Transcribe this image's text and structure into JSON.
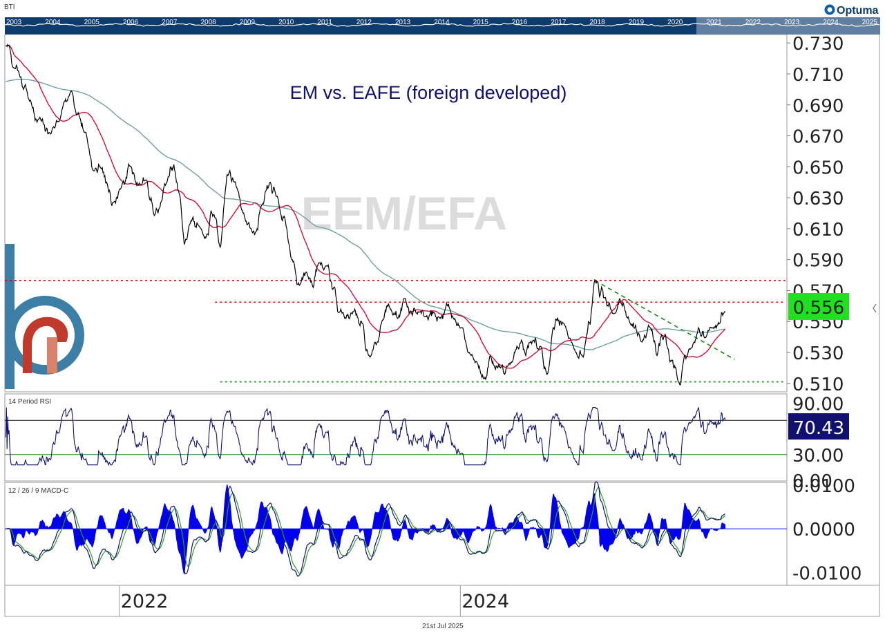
{
  "header": {
    "ticker": "BTI",
    "brand": "Optuma",
    "navigator_years": [
      "2003",
      "2004",
      "2005",
      "2006",
      "2007",
      "2008",
      "2009",
      "2010",
      "2011",
      "2012",
      "2013",
      "2014",
      "2015",
      "2016",
      "2017",
      "2018",
      "2019",
      "2020",
      "2021",
      "2022",
      "2023",
      "2024",
      "2025"
    ]
  },
  "footer": {
    "date": "21st Jul 2025"
  },
  "colors": {
    "price": "#000000",
    "ma_short": "#d0103a",
    "ma_long": "#6fa0a0",
    "resistance": "#e00000",
    "support": "#138a13",
    "trendline": "#138a13",
    "rsi": "#10106e",
    "macd_hist": "#0000ee",
    "macd_line": "#10106e",
    "macd_signal": "#2e9a2e",
    "price_badge": "#20e020",
    "rsi_badge": "#10106e",
    "navigator": "#0d3b6e",
    "watermark": "#dcdcdc",
    "title_color": "#10106e"
  },
  "chart_data": [
    {
      "type": "line",
      "panel": "price",
      "title": "EM vs. EAFE (foreign developed)",
      "watermark": "EEM/EFA",
      "x_range": [
        "2021-05-01",
        "2025-11-30"
      ],
      "ylim": [
        0.505,
        0.735
      ],
      "y_ticks": [
        "0.730",
        "0.710",
        "0.690",
        "0.670",
        "0.650",
        "0.630",
        "0.610",
        "0.590",
        "0.570",
        "0.550",
        "0.530",
        "0.510"
      ],
      "last_value": "0.556",
      "x_ticks": [
        "2022",
        "2024"
      ],
      "anchors": [
        [
          "2021-05-03",
          0.728
        ],
        [
          "2021-05-20",
          0.714
        ],
        [
          "2021-06-10",
          0.7
        ],
        [
          "2021-06-25",
          0.693
        ],
        [
          "2021-07-15",
          0.682
        ],
        [
          "2021-08-05",
          0.672
        ],
        [
          "2021-08-20",
          0.68
        ],
        [
          "2021-09-05",
          0.692
        ],
        [
          "2021-09-20",
          0.699
        ],
        [
          "2021-10-05",
          0.685
        ],
        [
          "2021-10-20",
          0.672
        ],
        [
          "2021-11-05",
          0.648
        ],
        [
          "2021-11-20",
          0.65
        ],
        [
          "2021-12-05",
          0.64
        ],
        [
          "2021-12-20",
          0.627
        ],
        [
          "2022-01-10",
          0.641
        ],
        [
          "2022-01-25",
          0.65
        ],
        [
          "2022-02-10",
          0.638
        ],
        [
          "2022-02-25",
          0.641
        ],
        [
          "2022-03-10",
          0.63
        ],
        [
          "2022-03-25",
          0.62
        ],
        [
          "2022-04-10",
          0.638
        ],
        [
          "2022-04-25",
          0.648
        ],
        [
          "2022-05-10",
          0.632
        ],
        [
          "2022-05-20",
          0.6
        ],
        [
          "2022-06-05",
          0.615
        ],
        [
          "2022-06-20",
          0.612
        ],
        [
          "2022-07-05",
          0.604
        ],
        [
          "2022-07-20",
          0.618
        ],
        [
          "2022-08-05",
          0.598
        ],
        [
          "2022-08-20",
          0.645
        ],
        [
          "2022-09-05",
          0.64
        ],
        [
          "2022-09-20",
          0.622
        ],
        [
          "2022-10-05",
          0.614
        ],
        [
          "2022-10-20",
          0.608
        ],
        [
          "2022-11-05",
          0.626
        ],
        [
          "2022-11-20",
          0.64
        ],
        [
          "2022-12-05",
          0.631
        ],
        [
          "2022-12-20",
          0.618
        ],
        [
          "2023-01-05",
          0.59
        ],
        [
          "2023-01-20",
          0.575
        ],
        [
          "2023-02-05",
          0.582
        ],
        [
          "2023-02-20",
          0.572
        ],
        [
          "2023-03-05",
          0.588
        ],
        [
          "2023-03-20",
          0.586
        ],
        [
          "2023-04-05",
          0.572
        ],
        [
          "2023-04-20",
          0.558
        ],
        [
          "2023-05-05",
          0.555
        ],
        [
          "2023-05-20",
          0.558
        ],
        [
          "2023-06-05",
          0.549
        ],
        [
          "2023-06-20",
          0.528
        ],
        [
          "2023-07-05",
          0.535
        ],
        [
          "2023-07-20",
          0.551
        ],
        [
          "2023-08-05",
          0.558
        ],
        [
          "2023-08-20",
          0.552
        ],
        [
          "2023-09-05",
          0.565
        ],
        [
          "2023-09-20",
          0.554
        ],
        [
          "2023-10-05",
          0.556
        ],
        [
          "2023-10-20",
          0.553
        ],
        [
          "2023-11-05",
          0.556
        ],
        [
          "2023-11-20",
          0.552
        ],
        [
          "2023-12-05",
          0.56
        ],
        [
          "2023-12-20",
          0.552
        ],
        [
          "2024-01-05",
          0.546
        ],
        [
          "2024-01-20",
          0.53
        ],
        [
          "2024-02-05",
          0.524
        ],
        [
          "2024-02-20",
          0.513
        ],
        [
          "2024-03-05",
          0.528
        ],
        [
          "2024-03-20",
          0.52
        ],
        [
          "2024-04-05",
          0.516
        ],
        [
          "2024-04-20",
          0.524
        ],
        [
          "2024-05-05",
          0.532
        ],
        [
          "2024-05-20",
          0.528
        ],
        [
          "2024-06-05",
          0.538
        ],
        [
          "2024-06-20",
          0.534
        ],
        [
          "2024-07-05",
          0.516
        ],
        [
          "2024-07-20",
          0.545
        ],
        [
          "2024-08-05",
          0.548
        ],
        [
          "2024-08-20",
          0.539
        ],
        [
          "2024-09-05",
          0.53
        ],
        [
          "2024-09-20",
          0.527
        ],
        [
          "2024-10-05",
          0.548
        ],
        [
          "2024-10-15",
          0.577
        ],
        [
          "2024-10-25",
          0.566
        ],
        [
          "2024-11-10",
          0.56
        ],
        [
          "2024-11-25",
          0.555
        ],
        [
          "2024-12-10",
          0.562
        ],
        [
          "2024-12-25",
          0.553
        ],
        [
          "2025-01-10",
          0.548
        ],
        [
          "2025-01-25",
          0.538
        ],
        [
          "2025-02-10",
          0.546
        ],
        [
          "2025-02-25",
          0.528
        ],
        [
          "2025-03-10",
          0.538
        ],
        [
          "2025-03-25",
          0.524
        ],
        [
          "2025-04-05",
          0.52
        ],
        [
          "2025-04-12",
          0.511
        ],
        [
          "2025-04-25",
          0.528
        ],
        [
          "2025-05-10",
          0.533
        ],
        [
          "2025-05-25",
          0.546
        ],
        [
          "2025-06-10",
          0.54
        ],
        [
          "2025-06-25",
          0.546
        ],
        [
          "2025-07-10",
          0.549
        ],
        [
          "2025-07-21",
          0.556
        ]
      ],
      "horizontal_lines": [
        {
          "name": "upper-resistance",
          "y": 0.5765,
          "from": "2021-05-01",
          "style": "dotted",
          "color_key": "resistance"
        },
        {
          "name": "lower-resistance",
          "y": 0.5625,
          "from": "2022-07-25",
          "style": "dotted",
          "color_key": "resistance"
        },
        {
          "name": "support",
          "y": 0.511,
          "from": "2022-08-05",
          "style": "dotted",
          "color_key": "support"
        }
      ],
      "trendline": {
        "from": [
          "2024-10-15",
          0.5765
        ],
        "to": [
          "2025-08-10",
          0.5255
        ],
        "style": "dashed"
      }
    },
    {
      "type": "line",
      "panel": "rsi",
      "title": "14 Period RSI",
      "period": 14,
      "ylim": [
        0,
        100
      ],
      "y_ticks": [
        "90.00",
        "70.00",
        "30.00",
        "0.00"
      ],
      "levels": [
        70,
        30
      ],
      "last_value": "70.43"
    },
    {
      "type": "bar",
      "panel": "macd",
      "title": "12 / 26 / 9 MACD-C",
      "params": [
        12,
        26,
        9
      ],
      "ylim": [
        -0.0128,
        0.0105
      ],
      "y_ticks": [
        "0.0100",
        "0.0000",
        "-0.0100"
      ]
    }
  ]
}
